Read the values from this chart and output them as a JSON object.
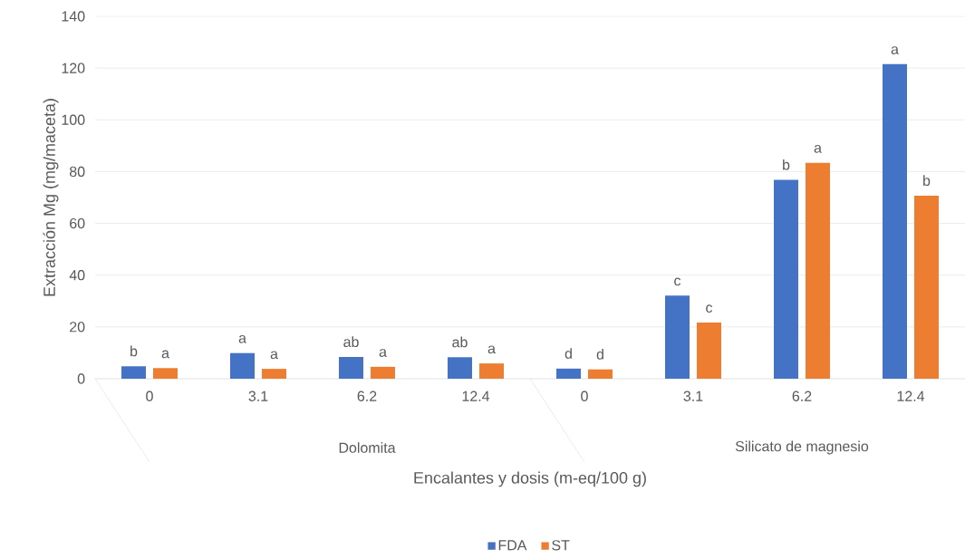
{
  "chart_data": {
    "type": "bar",
    "ylabel": "Extracción Mg (mg/maceta)",
    "xlabel": "Encalantes y dosis (m-eq/100 g)",
    "categories": [
      "0",
      "3.1",
      "6.2",
      "12.4",
      "0",
      "3.1",
      "6.2",
      "12.4"
    ],
    "annotations": [
      "Dolomita",
      "Silicato de magnesio"
    ],
    "series": [
      {
        "name": "FDA",
        "color": "#4472c4",
        "values": [
          4.8,
          9.9,
          8.4,
          8.3,
          3.9,
          32.1,
          76.8,
          121.5
        ],
        "value_labels": [
          "b",
          "a",
          "ab",
          "ab",
          "d",
          "c",
          "b",
          "a"
        ]
      },
      {
        "name": "ST",
        "color": "#ed7d31",
        "values": [
          4.1,
          3.8,
          4.6,
          5.9,
          3.6,
          21.7,
          83.4,
          70.7
        ],
        "value_labels": [
          "a",
          "a",
          "a",
          "a",
          "d",
          "c",
          "a",
          "b"
        ]
      }
    ],
    "ylim": [
      0,
      140
    ],
    "yticks": [
      0,
      20,
      40,
      60,
      80,
      100,
      120,
      140
    ],
    "grid": "y",
    "legend": "bottom"
  }
}
